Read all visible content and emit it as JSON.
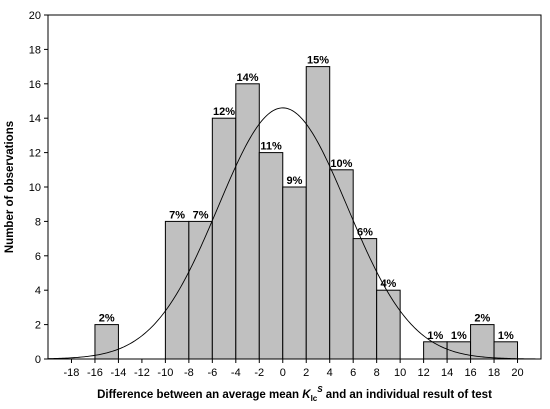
{
  "chart_data": {
    "type": "bar",
    "subtype": "histogram with fitted normal curve",
    "xlabel_prefix": "Difference between an average mean ",
    "xlabel_symbol": "K",
    "xlabel_subscript": "Ic",
    "xlabel_superscript": "S",
    "xlabel_suffix": " and an individual result of test",
    "ylabel": "Number of observations",
    "xlim": [
      -20,
      22
    ],
    "ylim": [
      0,
      20
    ],
    "x_ticks": [
      -18,
      -16,
      -14,
      -12,
      -10,
      -8,
      -6,
      -4,
      -2,
      0,
      2,
      4,
      6,
      8,
      10,
      12,
      14,
      16,
      18,
      20
    ],
    "y_ticks": [
      0,
      2,
      4,
      6,
      8,
      10,
      12,
      14,
      16,
      18,
      20
    ],
    "bins": [
      {
        "start": -16,
        "end": -14,
        "count": 2,
        "label": "2%"
      },
      {
        "start": -10,
        "end": -8,
        "count": 8,
        "label": "7%"
      },
      {
        "start": -8,
        "end": -6,
        "count": 8,
        "label": "7%"
      },
      {
        "start": -6,
        "end": -4,
        "count": 14,
        "label": "12%"
      },
      {
        "start": -4,
        "end": -2,
        "count": 16,
        "label": "14%"
      },
      {
        "start": -2,
        "end": 0,
        "count": 12,
        "label": "11%"
      },
      {
        "start": 0,
        "end": 2,
        "count": 10,
        "label": "9%"
      },
      {
        "start": 2,
        "end": 4,
        "count": 17,
        "label": "15%"
      },
      {
        "start": 4,
        "end": 6,
        "count": 11,
        "label": "10%"
      },
      {
        "start": 6,
        "end": 8,
        "count": 7,
        "label": "6%"
      },
      {
        "start": 8,
        "end": 10,
        "count": 4,
        "label": "4%"
      },
      {
        "start": 12,
        "end": 14,
        "count": 1,
        "label": "1%"
      },
      {
        "start": 14,
        "end": 16,
        "count": 1,
        "label": "1%"
      },
      {
        "start": 16,
        "end": 18,
        "count": 2,
        "label": "2%"
      },
      {
        "start": 18,
        "end": 20,
        "count": 1,
        "label": "1%"
      }
    ],
    "normal_curve": {
      "mean": 0,
      "sd": 5.5,
      "peak": 14.6
    },
    "grid": false,
    "legend": "none",
    "colors": {
      "bar_fill": "#c0c0c0",
      "bar_stroke": "#000000",
      "curve": "#000000"
    }
  }
}
